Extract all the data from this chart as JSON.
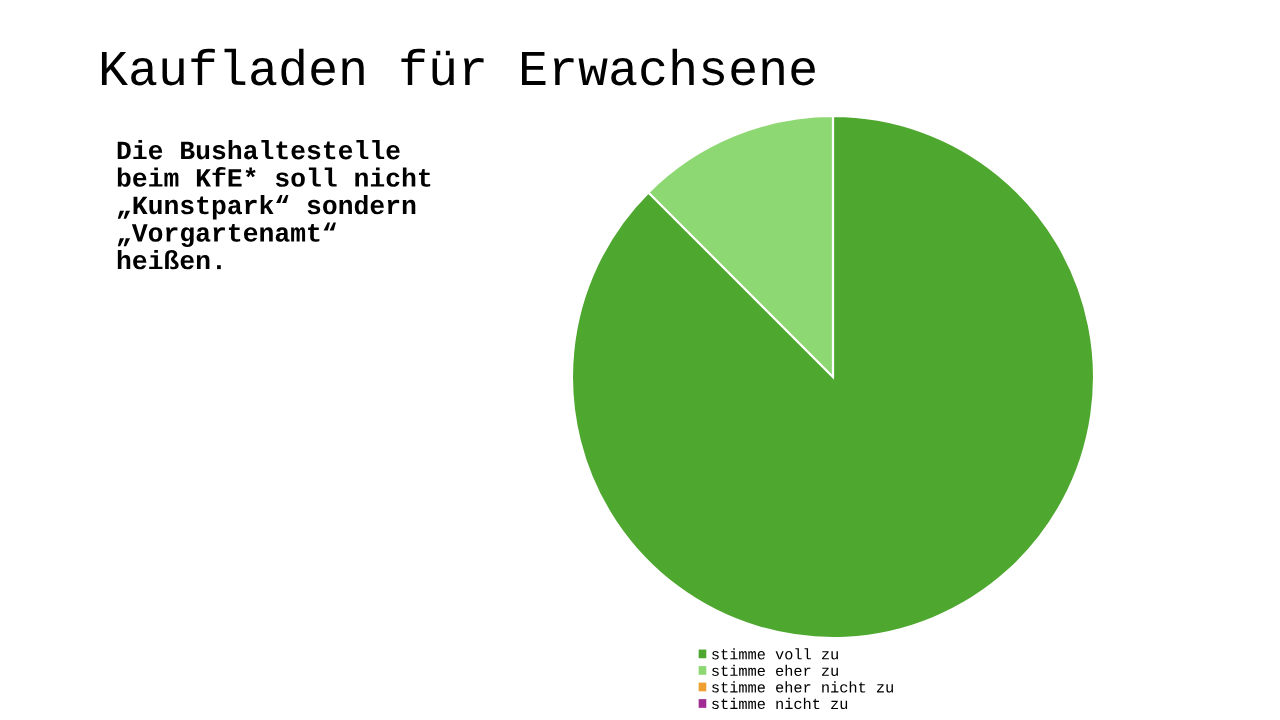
{
  "chart_data": {
    "type": "pie",
    "title": "Kaufladen für Erwachsene",
    "subtitle": "Die Bushaltestelle\nbeim KfE* soll nicht\n„Kunstpark“ sondern\n„Vorgartenamt“\nheißen.",
    "categories": [
      "stimme voll zu",
      "stimme eher zu",
      "stimme eher nicht zu",
      "stimme nicht zu"
    ],
    "values": [
      87.5,
      12.5,
      0,
      0
    ],
    "colors": [
      "#4ea72e",
      "#8ed873",
      "#f0a030",
      "#a02b93"
    ],
    "legend": "bottom"
  }
}
